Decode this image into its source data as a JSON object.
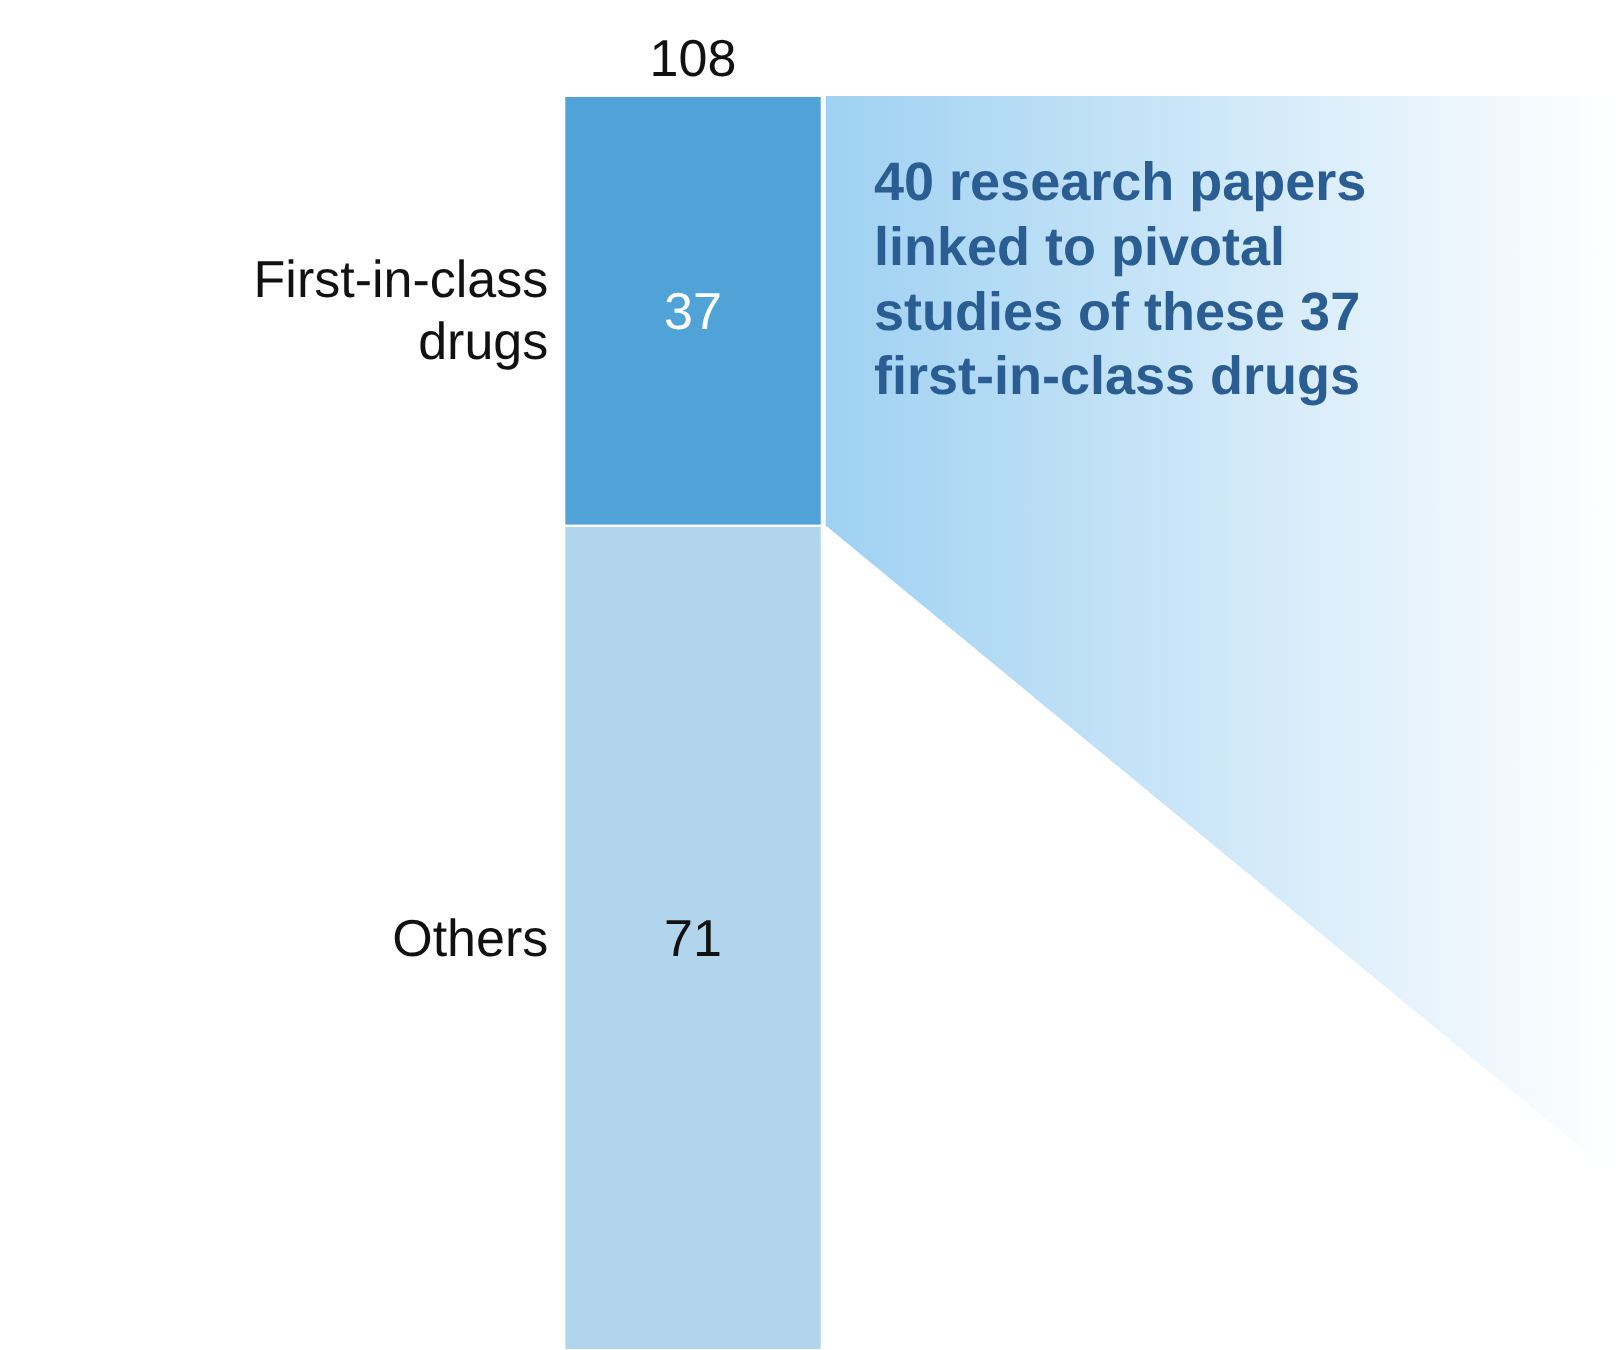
{
  "chart_data": {
    "type": "bar",
    "stacked": true,
    "categories": [
      null
    ],
    "series": [
      {
        "name": "Others",
        "color": "#b1d5ed",
        "values": [
          71
        ]
      },
      {
        "name": "First-in-class drugs",
        "color": "#4fa3d7",
        "values": [
          37
        ]
      }
    ],
    "data_labels": true,
    "totals": [
      "108"
    ],
    "annotations": [
      "40 research papers\nlinked to pivotal\nstudies of these 37\nfirst-in-class drugs"
    ]
  }
}
